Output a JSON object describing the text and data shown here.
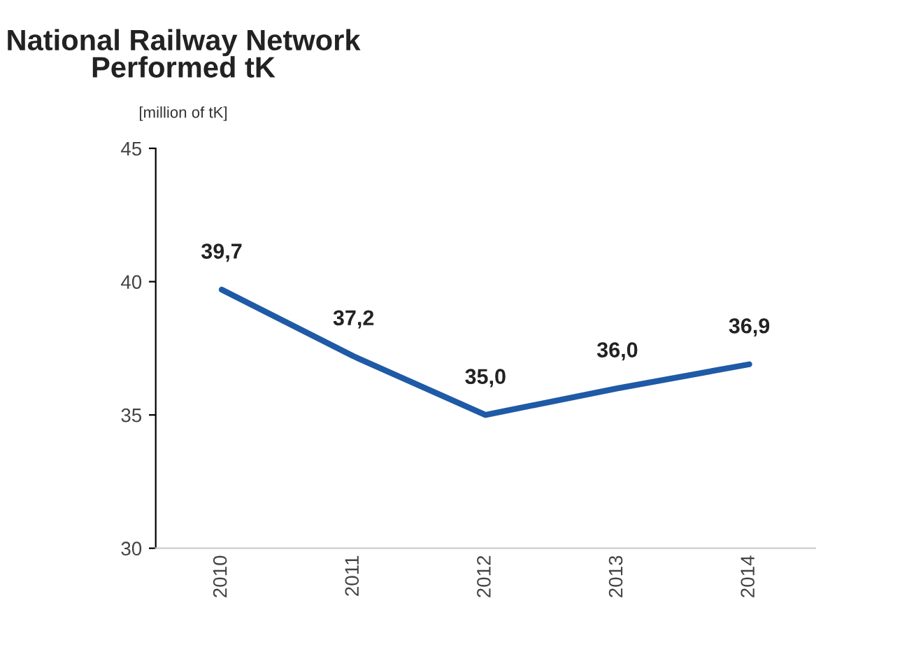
{
  "chart_data": {
    "type": "line",
    "title": "National Railway Network\nPerformed tK",
    "subtitle": "[million of tK]",
    "categories": [
      "2010",
      "2011",
      "2012",
      "2013",
      "2014"
    ],
    "series": [
      {
        "color": "#1f5aa6",
        "values": [
          39.7,
          37.2,
          35.0,
          36.0,
          36.9
        ],
        "value_labels": [
          "39,7",
          "37,2",
          "35,0",
          "36,0",
          "36,9"
        ]
      }
    ],
    "ylim": [
      30,
      45
    ],
    "yticks": [
      30,
      35,
      40,
      45
    ],
    "grid": false,
    "legend": false,
    "marker": "none",
    "line_style": "solid"
  }
}
